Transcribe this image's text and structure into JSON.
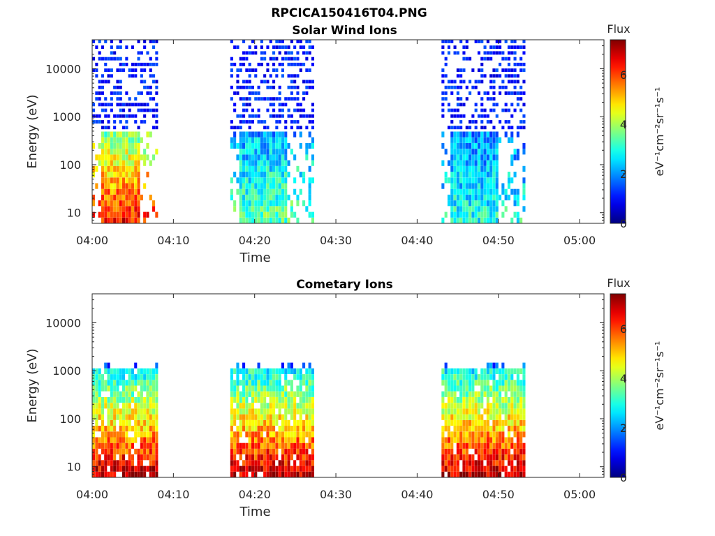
{
  "figure": {
    "title": "RPCICA150416T04.PNG"
  },
  "colorbar": {
    "title": "Flux",
    "label": "eV⁻¹cm⁻²sr⁻¹s⁻¹",
    "min": 0,
    "max": 7.4,
    "ticks": [
      "0",
      "2",
      "4",
      "6"
    ]
  },
  "chart_data": [
    {
      "type": "heatmap",
      "title": "Solar Wind Ions",
      "xlabel": "Time",
      "ylabel": "Energy (eV)",
      "xlim": [
        "04:00",
        "05:03"
      ],
      "ylim": [
        6,
        40000
      ],
      "yscale": "log",
      "xticks": [
        "04:00",
        "04:10",
        "04:20",
        "04:30",
        "04:40",
        "04:50",
        "05:00"
      ],
      "yticks": [
        "10",
        "100",
        "1000",
        "10000"
      ],
      "bursts": [
        {
          "start": "04:00",
          "end": "04:08",
          "peak": "04:03",
          "max_energy": 35000,
          "low_energy_flux": 6.5,
          "high_energy_flux": 0.8
        },
        {
          "start": "04:17",
          "end": "04:27",
          "peak": "04:22",
          "max_energy": 35000,
          "low_energy_flux": 3.5,
          "high_energy_flux": 0.8
        },
        {
          "start": "04:43",
          "end": "04:53",
          "peak": "04:47",
          "max_energy": 35000,
          "low_energy_flux": 3.0,
          "high_energy_flux": 0.8
        }
      ]
    },
    {
      "type": "heatmap",
      "title": "Cometary Ions",
      "xlabel": "Time",
      "ylabel": "Energy (eV)",
      "xlim": [
        "04:00",
        "05:03"
      ],
      "ylim": [
        6,
        40000
      ],
      "yscale": "log",
      "xticks": [
        "04:00",
        "04:10",
        "04:20",
        "04:30",
        "04:40",
        "04:50",
        "05:00"
      ],
      "yticks": [
        "10",
        "100",
        "1000",
        "10000"
      ],
      "bursts": [
        {
          "start": "04:00",
          "end": "04:08",
          "max_energy": 1500,
          "low_energy_flux": 7.0,
          "high_energy_flux": 2.5
        },
        {
          "start": "04:17",
          "end": "04:27",
          "max_energy": 1500,
          "low_energy_flux": 7.0,
          "high_energy_flux": 2.5
        },
        {
          "start": "04:43",
          "end": "04:53",
          "max_energy": 1500,
          "low_energy_flux": 7.0,
          "high_energy_flux": 2.5
        }
      ]
    }
  ]
}
